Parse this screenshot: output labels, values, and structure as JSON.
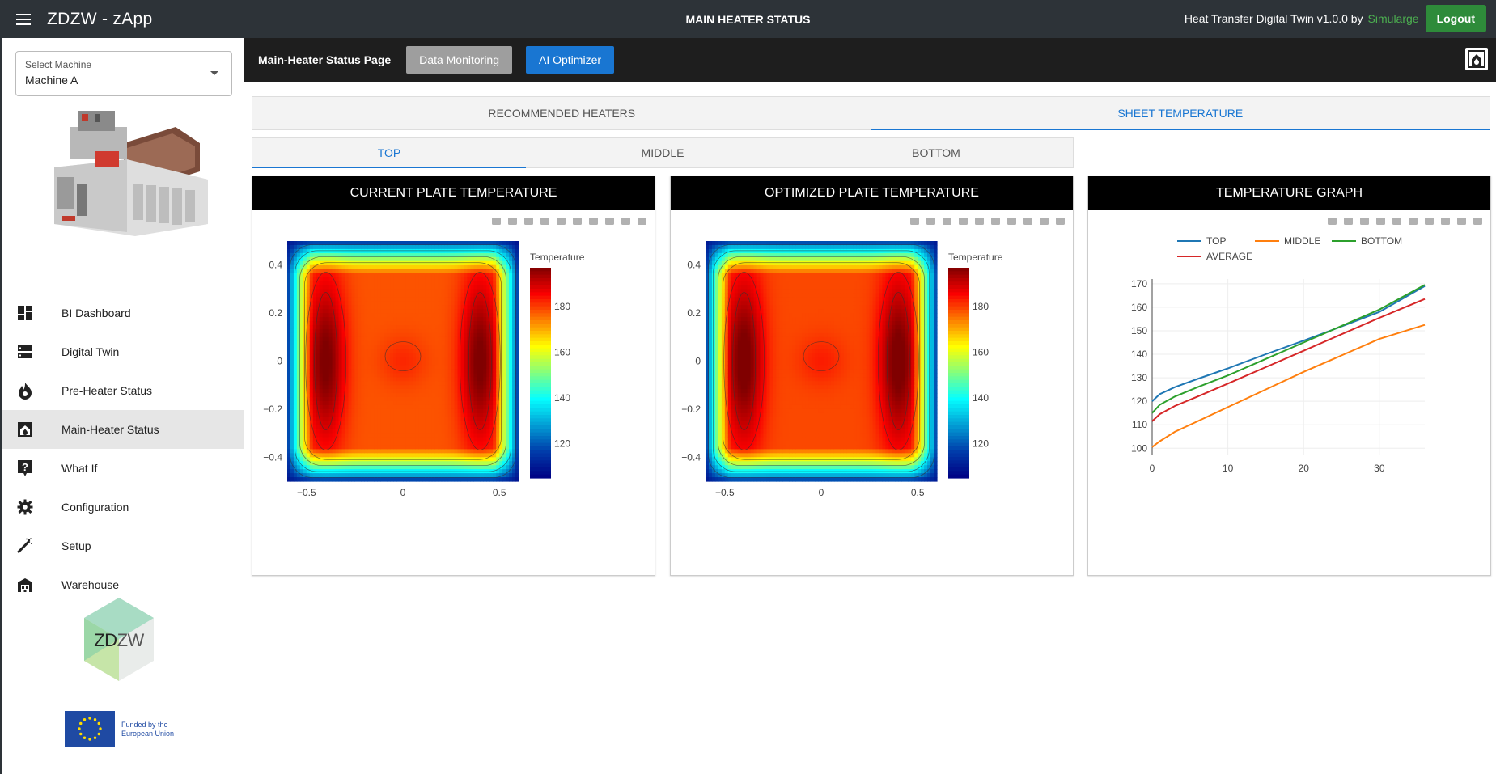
{
  "appbar": {
    "title": "ZDZW - zApp",
    "center_title": "MAIN HEATER STATUS",
    "info_text": "Heat Transfer Digital Twin v1.0.0 by",
    "brand": "Simularge",
    "logout_label": "Logout"
  },
  "sidebar": {
    "select_label": "Select Machine",
    "select_value": "Machine A",
    "items": [
      {
        "label": "BI Dashboard",
        "icon": "dashboard-icon"
      },
      {
        "label": "Digital Twin",
        "icon": "storage-icon"
      },
      {
        "label": "Pre-Heater Status",
        "icon": "flame-icon"
      },
      {
        "label": "Main-Heater Status",
        "icon": "heater-icon",
        "active": true
      },
      {
        "label": "What If",
        "icon": "question-icon"
      },
      {
        "label": "Configuration",
        "icon": "gear-icon"
      },
      {
        "label": "Setup",
        "icon": "wand-icon"
      },
      {
        "label": "Warehouse",
        "icon": "warehouse-icon"
      }
    ],
    "zdzw_logo_text": "ZDZW",
    "eu_text_line1": "Funded by the",
    "eu_text_line2": "European Union"
  },
  "subbar": {
    "page_title": "Main-Heater Status Page",
    "data_monitoring_label": "Data Monitoring",
    "ai_optimizer_label": "AI Optimizer"
  },
  "tabs": {
    "main": [
      "RECOMMENDED HEATERS",
      "SHEET TEMPERATURE"
    ],
    "main_active": 1,
    "position": [
      "TOP",
      "MIDDLE",
      "BOTTOM"
    ],
    "position_active": 0
  },
  "cards": {
    "current_title": "CURRENT PLATE TEMPERATURE",
    "optimized_title": "OPTIMIZED PLATE TEMPERATURE",
    "graph_title": "TEMPERATURE GRAPH"
  },
  "chart_data": [
    {
      "type": "heatmap",
      "title": "CURRENT PLATE TEMPERATURE",
      "colorbar_title": "Temperature",
      "colorbar_ticks": [
        120,
        140,
        160,
        180
      ],
      "zlim": [
        105,
        197
      ],
      "x_ticks": [
        "−0.5",
        "0",
        "0.5"
      ],
      "y_ticks": [
        "0.4",
        "0.2",
        "0",
        "−0.2",
        "−0.4"
      ],
      "xlim": [
        -0.6,
        0.6
      ],
      "ylim": [
        -0.5,
        0.5
      ],
      "contours": true
    },
    {
      "type": "heatmap",
      "title": "OPTIMIZED PLATE TEMPERATURE",
      "colorbar_title": "Temperature",
      "colorbar_ticks": [
        120,
        140,
        160,
        180
      ],
      "zlim": [
        105,
        197
      ],
      "x_ticks": [
        "−0.5",
        "0",
        "0.5"
      ],
      "y_ticks": [
        "0.4",
        "0.2",
        "0",
        "−0.2",
        "−0.4"
      ],
      "xlim": [
        -0.6,
        0.6
      ],
      "ylim": [
        -0.5,
        0.5
      ],
      "contours": true
    },
    {
      "type": "line",
      "title": "TEMPERATURE GRAPH",
      "xlim": [
        0,
        36
      ],
      "ylim": [
        97,
        172
      ],
      "x_ticks": [
        0,
        10,
        20,
        30
      ],
      "y_ticks": [
        100,
        110,
        120,
        130,
        140,
        150,
        160,
        170
      ],
      "grid": true,
      "legend_position": "top-left",
      "series": [
        {
          "name": "TOP",
          "color": "#1f77b4",
          "x": [
            0,
            1,
            3,
            6,
            10,
            15,
            20,
            25,
            30,
            36
          ],
          "values": [
            120,
            123,
            126,
            129.5,
            134,
            140,
            145.8,
            151.8,
            158,
            169
          ]
        },
        {
          "name": "MIDDLE",
          "color": "#ff7f0e",
          "x": [
            0,
            1,
            3,
            6,
            10,
            15,
            20,
            25,
            30,
            36
          ],
          "values": [
            100.5,
            103,
            107,
            111.5,
            117.5,
            125,
            132.5,
            139.5,
            146.5,
            152.5
          ]
        },
        {
          "name": "BOTTOM",
          "color": "#2ca02c",
          "x": [
            0,
            1,
            3,
            6,
            10,
            15,
            20,
            25,
            30,
            36
          ],
          "values": [
            115,
            118.5,
            122,
            126,
            131,
            138,
            145,
            152,
            159,
            169.5
          ]
        },
        {
          "name": "AVERAGE",
          "color": "#d62728",
          "x": [
            0,
            1,
            3,
            6,
            10,
            15,
            20,
            25,
            30,
            36
          ],
          "values": [
            111.5,
            114.5,
            118,
            122,
            127.5,
            134.5,
            141.5,
            148.5,
            155.5,
            163.5
          ]
        }
      ]
    }
  ]
}
